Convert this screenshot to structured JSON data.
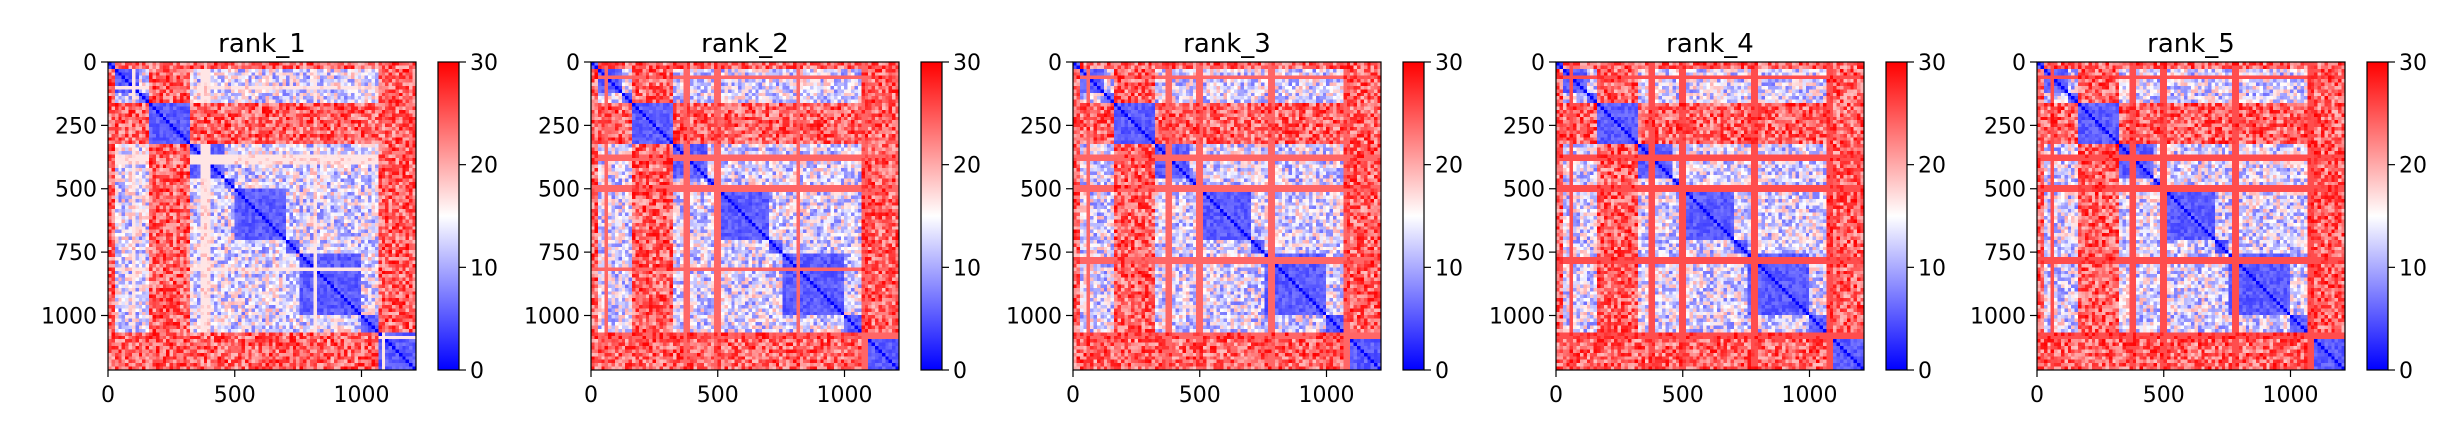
{
  "chart_data": [
    {
      "type": "heatmap",
      "title": "rank_1",
      "xlabel": "",
      "ylabel": "",
      "x_ticks": [
        0,
        500,
        1000
      ],
      "y_ticks": [
        0,
        250,
        500,
        750,
        1000
      ],
      "xlim": [
        0,
        1215
      ],
      "ylim": [
        1215,
        0
      ],
      "colormap": "bwr",
      "colorbar": {
        "min": 0,
        "max": 30,
        "ticks": [
          0,
          10,
          20,
          30
        ]
      },
      "block_boundaries": [
        0,
        25,
        120,
        160,
        330,
        460,
        500,
        700,
        760,
        1000,
        1060,
        1215
      ],
      "band_rows": [
        100,
        370,
        385,
        400,
        820,
        1090
      ],
      "band_strength": 0.55
    },
    {
      "type": "heatmap",
      "title": "rank_2",
      "xlabel": "",
      "ylabel": "",
      "x_ticks": [
        0,
        500,
        1000
      ],
      "y_ticks": [
        0,
        250,
        500,
        750,
        1000
      ],
      "xlim": [
        0,
        1215
      ],
      "ylim": [
        1215,
        0
      ],
      "colormap": "bwr",
      "colorbar": {
        "min": 0,
        "max": 30,
        "ticks": [
          0,
          10,
          20,
          30
        ]
      },
      "block_boundaries": [
        0,
        25,
        120,
        160,
        330,
        460,
        500,
        700,
        760,
        1000,
        1060,
        1215
      ],
      "band_rows": [
        60,
        380,
        500,
        820,
        1080
      ],
      "band_strength": 0.8
    },
    {
      "type": "heatmap",
      "title": "rank_3",
      "xlabel": "",
      "ylabel": "",
      "x_ticks": [
        0,
        500,
        1000
      ],
      "y_ticks": [
        0,
        250,
        500,
        750,
        1000
      ],
      "xlim": [
        0,
        1215
      ],
      "ylim": [
        1215,
        0
      ],
      "colormap": "bwr",
      "colorbar": {
        "min": 0,
        "max": 30,
        "ticks": [
          0,
          10,
          20,
          30
        ]
      },
      "block_boundaries": [
        0,
        25,
        120,
        160,
        330,
        460,
        500,
        700,
        760,
        1000,
        1060,
        1215
      ],
      "band_rows": [
        60,
        380,
        500,
        780,
        1080
      ],
      "band_strength": 0.8
    },
    {
      "type": "heatmap",
      "title": "rank_4",
      "xlabel": "",
      "ylabel": "",
      "x_ticks": [
        0,
        500,
        1000
      ],
      "y_ticks": [
        0,
        250,
        500,
        750,
        1000
      ],
      "xlim": [
        0,
        1215
      ],
      "ylim": [
        1215,
        0
      ],
      "colormap": "bwr",
      "colorbar": {
        "min": 0,
        "max": 30,
        "ticks": [
          0,
          10,
          20,
          30
        ]
      },
      "block_boundaries": [
        0,
        25,
        120,
        160,
        330,
        460,
        500,
        700,
        760,
        1000,
        1060,
        1215
      ],
      "band_rows": [
        60,
        380,
        500,
        780,
        1080
      ],
      "band_strength": 0.85
    },
    {
      "type": "heatmap",
      "title": "rank_5",
      "xlabel": "",
      "ylabel": "",
      "x_ticks": [
        0,
        500,
        1000
      ],
      "y_ticks": [
        0,
        250,
        500,
        750,
        1000
      ],
      "xlim": [
        0,
        1215
      ],
      "ylim": [
        1215,
        0
      ],
      "colormap": "bwr",
      "colorbar": {
        "min": 0,
        "max": 30,
        "ticks": [
          0,
          10,
          20,
          30
        ]
      },
      "block_boundaries": [
        0,
        25,
        120,
        160,
        330,
        460,
        500,
        700,
        760,
        1000,
        1060,
        1215
      ],
      "band_rows": [
        60,
        380,
        500,
        780,
        1080
      ],
      "band_strength": 0.85
    }
  ]
}
